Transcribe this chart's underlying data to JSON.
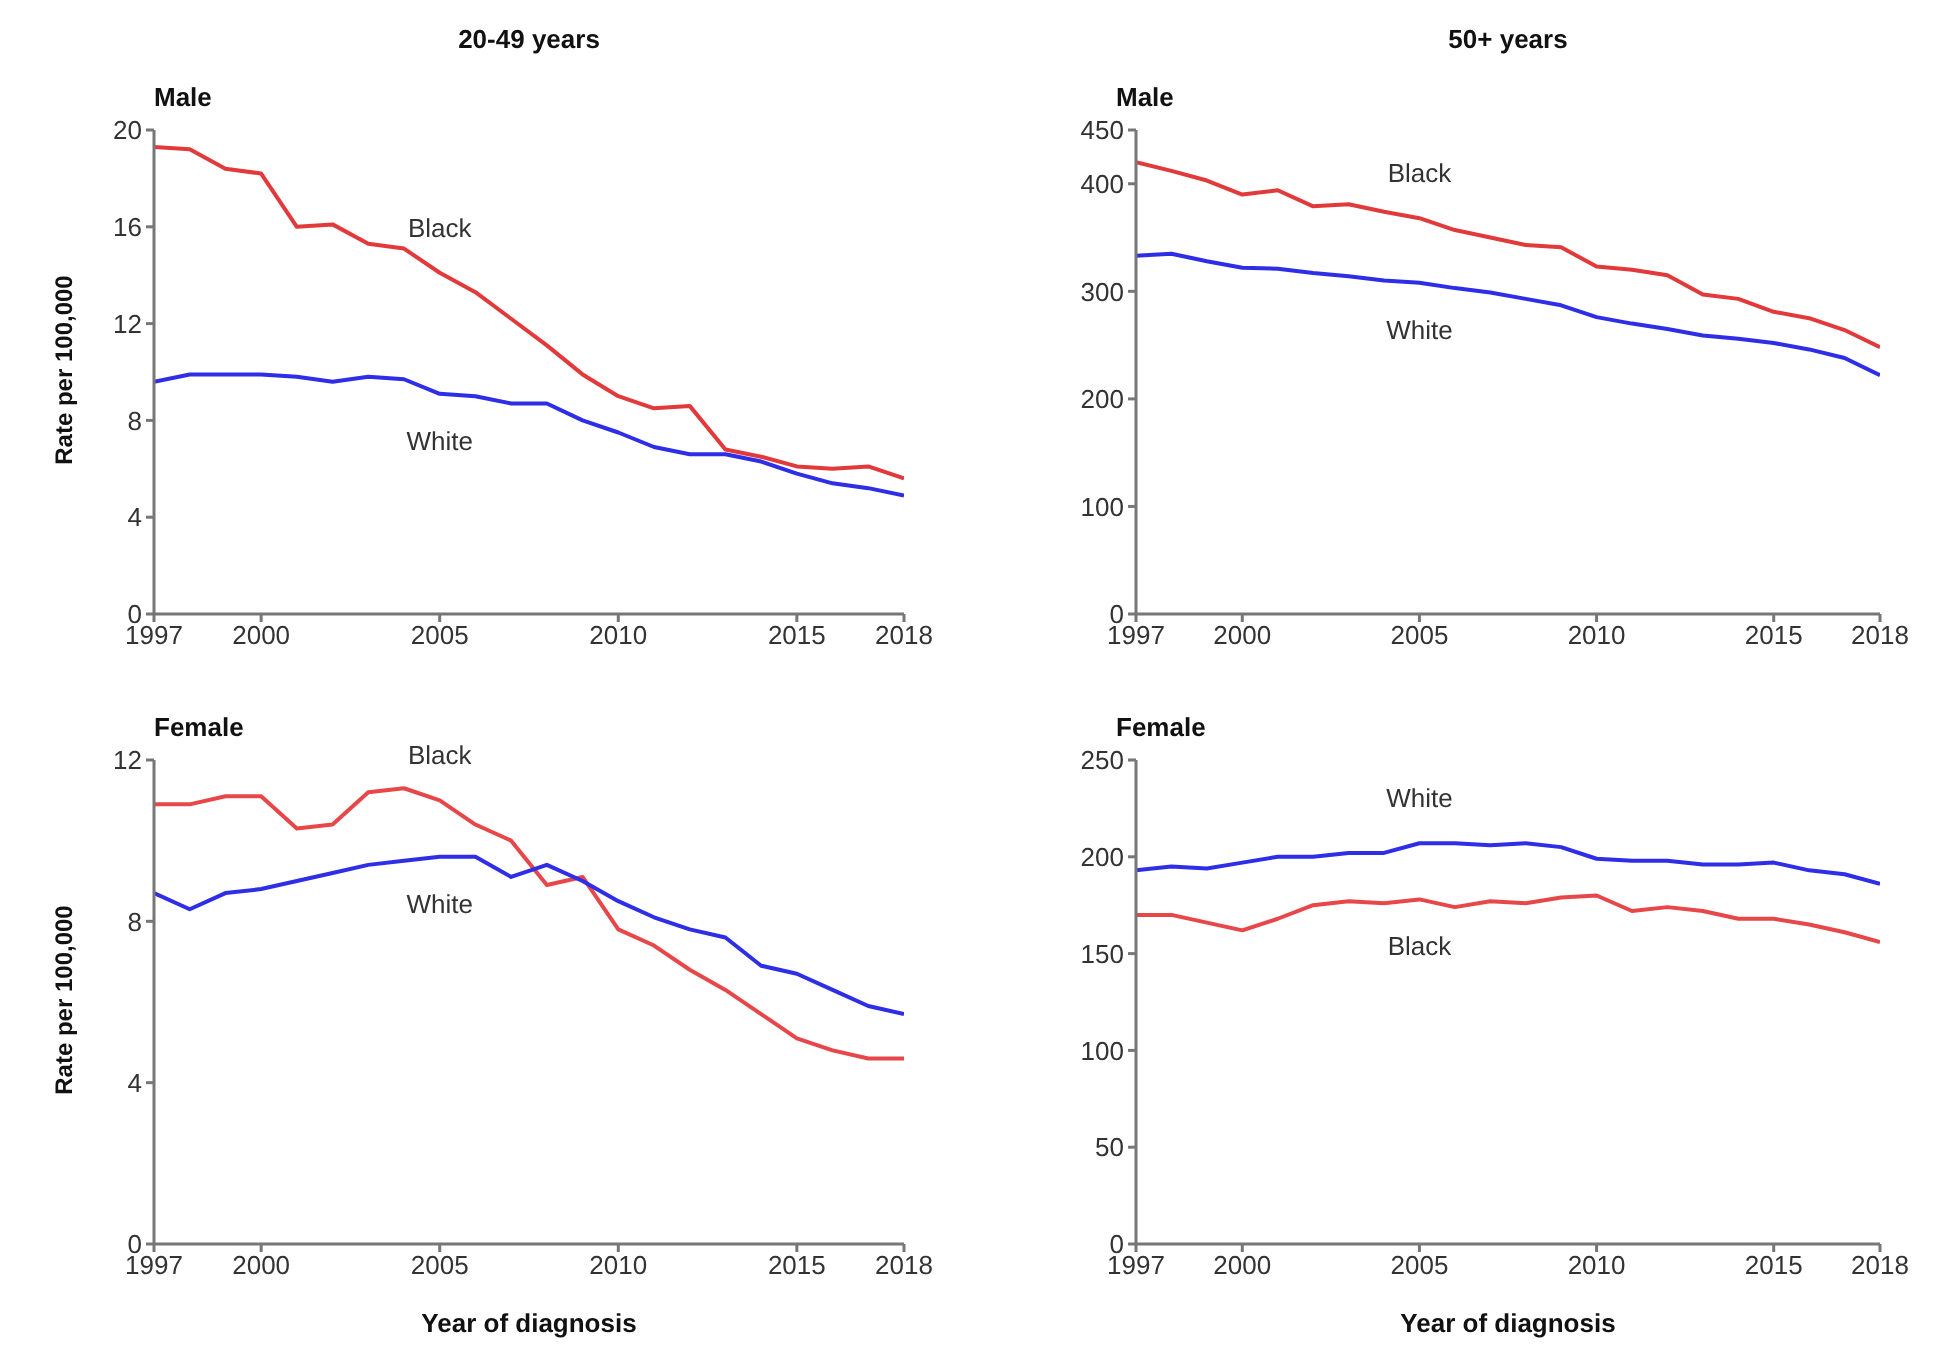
{
  "chart_data": [
    {
      "type": "line",
      "title": "20-49 years",
      "subtitle": "Male",
      "ylabel": "Rate per 100,000",
      "x": [
        1997,
        1998,
        1999,
        2000,
        2001,
        2002,
        2003,
        2004,
        2005,
        2006,
        2007,
        2008,
        2009,
        2010,
        2011,
        2012,
        2013,
        2014,
        2015,
        2016,
        2017,
        2018
      ],
      "series": [
        {
          "name": "Black",
          "color": "#e23a3a",
          "values": [
            19.3,
            19.2,
            18.4,
            18.2,
            16.0,
            16.1,
            15.3,
            15.1,
            14.1,
            13.3,
            12.2,
            11.1,
            9.9,
            9.0,
            8.5,
            8.6,
            6.8,
            6.5,
            6.1,
            6.0,
            6.1,
            5.6
          ]
        },
        {
          "name": "White",
          "color": "#2e2ee6",
          "values": [
            9.6,
            9.9,
            9.9,
            9.9,
            9.8,
            9.6,
            9.8,
            9.7,
            9.1,
            9.0,
            8.7,
            8.7,
            8.0,
            7.5,
            6.9,
            6.6,
            6.6,
            6.3,
            5.8,
            5.4,
            5.2,
            4.9
          ]
        }
      ],
      "xlim": [
        1997,
        2018
      ],
      "xticks": [
        1997,
        2000,
        2005,
        2010,
        2015,
        2018
      ],
      "ylim": [
        0,
        20
      ],
      "yticks": [
        0,
        4,
        8,
        12,
        16,
        20
      ],
      "marker": "none",
      "line_style": "solid"
    },
    {
      "type": "line",
      "title": "50+ years",
      "subtitle": "Male",
      "x": [
        1997,
        1998,
        1999,
        2000,
        2001,
        2002,
        2003,
        2004,
        2005,
        2006,
        2007,
        2008,
        2009,
        2010,
        2011,
        2012,
        2013,
        2014,
        2015,
        2016,
        2017,
        2018
      ],
      "series": [
        {
          "name": "Black",
          "color": "#e23a3a",
          "values": [
            420,
            412,
            403,
            390,
            394,
            379,
            381,
            374,
            368,
            357,
            350,
            343,
            341,
            323,
            320,
            315,
            297,
            293,
            281,
            275,
            264,
            248
          ]
        },
        {
          "name": "White",
          "color": "#2e2ee6",
          "values": [
            333,
            335,
            328,
            322,
            321,
            317,
            314,
            310,
            308,
            303,
            299,
            293,
            287,
            276,
            270,
            265,
            259,
            256,
            252,
            246,
            238,
            222
          ]
        }
      ],
      "xlim": [
        1997,
        2018
      ],
      "xticks": [
        1997,
        2000,
        2005,
        2010,
        2015,
        2018
      ],
      "ylim": [
        0,
        450
      ],
      "yticks": [
        0,
        100,
        200,
        300,
        400,
        450
      ],
      "marker": "none",
      "line_style": "solid"
    },
    {
      "type": "line",
      "subtitle": "Female",
      "xlabel": "Year of diagnosis",
      "ylabel": "Rate per 100,000",
      "x": [
        1997,
        1998,
        1999,
        2000,
        2001,
        2002,
        2003,
        2004,
        2005,
        2006,
        2007,
        2008,
        2009,
        2010,
        2011,
        2012,
        2013,
        2014,
        2015,
        2016,
        2017,
        2018
      ],
      "series": [
        {
          "name": "Black",
          "color": "#e8474a",
          "values": [
            10.9,
            10.9,
            11.1,
            11.1,
            10.3,
            10.4,
            11.2,
            11.3,
            11.0,
            10.4,
            10.0,
            8.9,
            9.1,
            7.8,
            7.4,
            6.8,
            6.3,
            5.7,
            5.1,
            4.8,
            4.6,
            4.6
          ]
        },
        {
          "name": "White",
          "color": "#2e2ee6",
          "values": [
            8.7,
            8.3,
            8.7,
            8.8,
            9.0,
            9.2,
            9.4,
            9.5,
            9.6,
            9.6,
            9.1,
            9.4,
            9.0,
            8.5,
            8.1,
            7.8,
            7.6,
            6.9,
            6.7,
            6.3,
            5.9,
            5.7
          ]
        }
      ],
      "xlim": [
        1997,
        2018
      ],
      "xticks": [
        1997,
        2000,
        2005,
        2010,
        2015,
        2018
      ],
      "ylim": [
        0,
        12
      ],
      "yticks": [
        0,
        4,
        8,
        12
      ],
      "marker": "none",
      "line_style": "solid"
    },
    {
      "type": "line",
      "subtitle": "Female",
      "xlabel": "Year of diagnosis",
      "x": [
        1997,
        1998,
        1999,
        2000,
        2001,
        2002,
        2003,
        2004,
        2005,
        2006,
        2007,
        2008,
        2009,
        2010,
        2011,
        2012,
        2013,
        2014,
        2015,
        2016,
        2017,
        2018
      ],
      "series": [
        {
          "name": "White",
          "color": "#2e2ee6",
          "values": [
            193,
            195,
            194,
            197,
            200,
            200,
            202,
            202,
            207,
            207,
            206,
            207,
            205,
            199,
            198,
            198,
            196,
            196,
            197,
            193,
            191,
            186
          ]
        },
        {
          "name": "Black",
          "color": "#e8474a",
          "values": [
            170,
            170,
            166,
            162,
            168,
            175,
            177,
            176,
            178,
            174,
            177,
            176,
            179,
            180,
            172,
            174,
            172,
            168,
            168,
            165,
            161,
            156
          ]
        }
      ],
      "xlim": [
        1997,
        2018
      ],
      "xticks": [
        1997,
        2000,
        2005,
        2010,
        2015,
        2018
      ],
      "ylim": [
        0,
        250
      ],
      "yticks": [
        0,
        50,
        100,
        150,
        200,
        250
      ],
      "marker": "none",
      "line_style": "solid"
    }
  ]
}
